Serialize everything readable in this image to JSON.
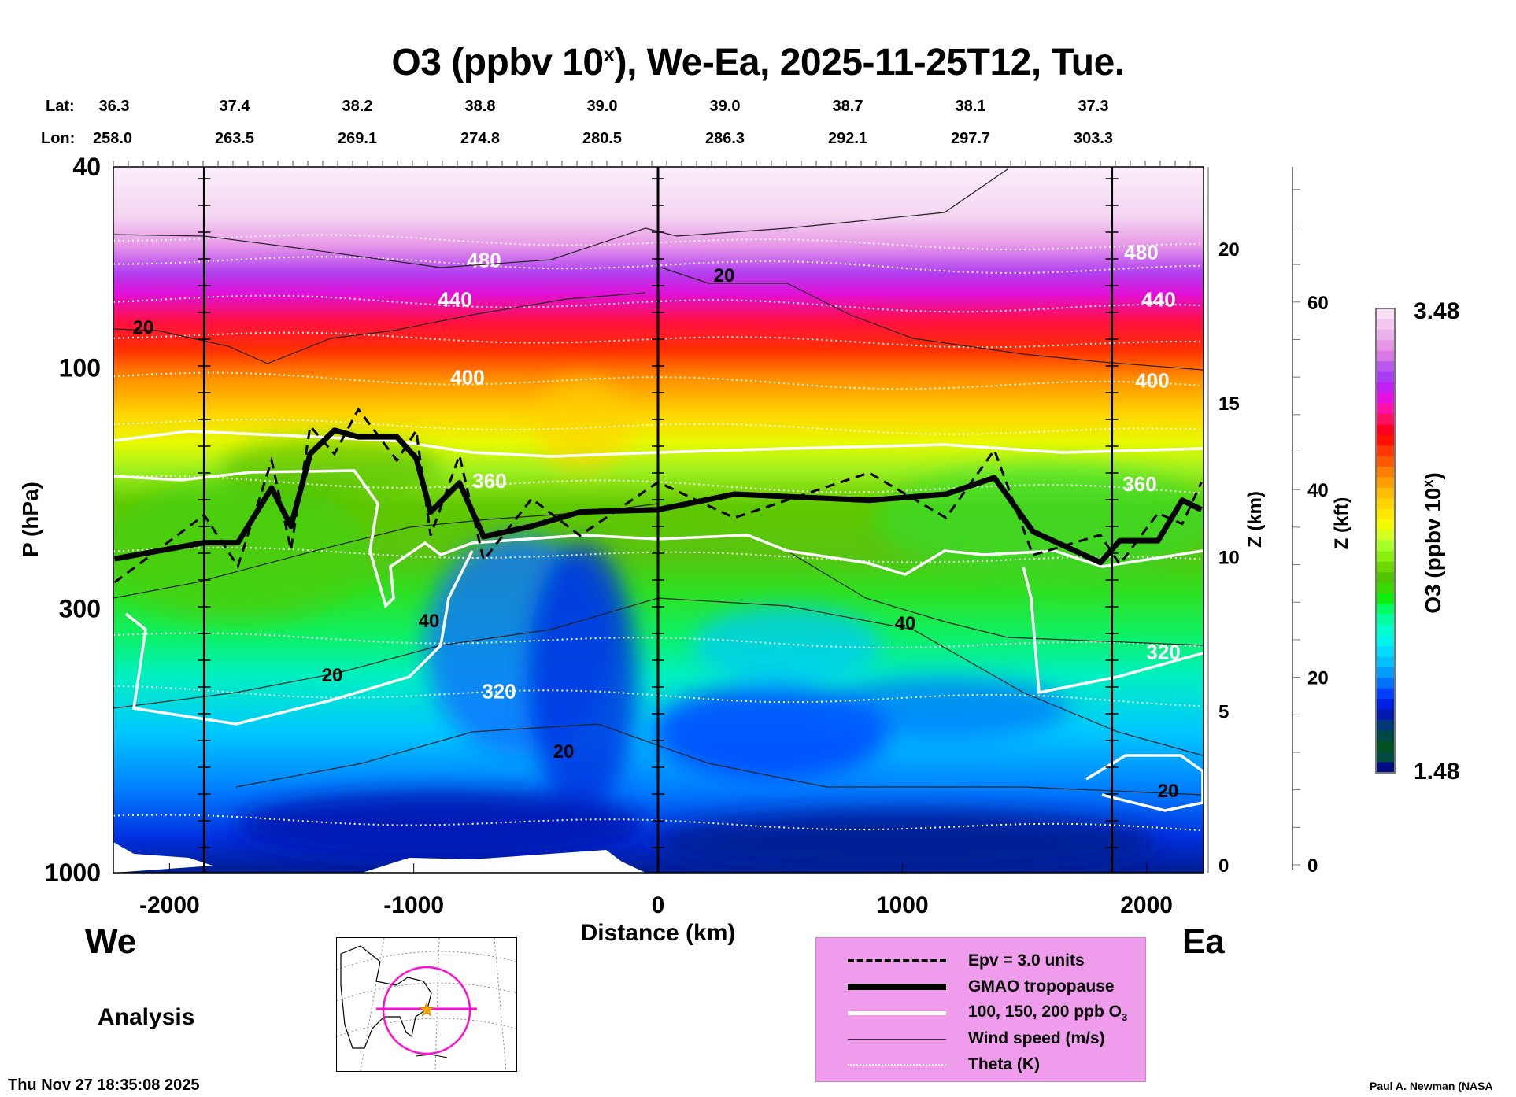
{
  "title": {
    "main": "O3 (ppbv 10",
    "sup": "x",
    "rest": "), We-Ea, 2025-11-25T12, Tue."
  },
  "lat_label": "Lat:",
  "lon_label": "Lon:",
  "lats": [
    "36.3",
    "37.4",
    "38.2",
    "38.8",
    "39.0",
    "39.0",
    "38.7",
    "38.1",
    "37.3"
  ],
  "lons": [
    "258.0",
    "263.5",
    "269.1",
    "274.8",
    "280.5",
    "286.3",
    "292.1",
    "297.7",
    "303.3"
  ],
  "west_label": "We",
  "east_label": "Ea",
  "analysis_label": "Analysis",
  "timestamp": "Thu Nov 27 18:35:08 2025",
  "credit": "Paul A. Newman (NASA",
  "legend": {
    "epv": "Epv = 3.0 units",
    "tropopause": "GMAO tropopause",
    "ozone": "100, 150, 200 ppb O",
    "ozone_sub": "3",
    "wind": "Wind speed (m/s)",
    "theta": "Theta (K)"
  },
  "chart_data": {
    "type": "heatmap",
    "title": "O3 (ppbv 10^x), We-Ea, 2025-11-25T12, Tue.",
    "xlabel": "Distance (km)",
    "ylabel": "P (hPa)",
    "y2label": "Z (km)",
    "y3label": "Z (kft)",
    "colorbar_label": "O3 (ppbv 10",
    "colorbar_label_sup": "x",
    "colorbar_label_end": ")",
    "xlim": [
      -2230,
      2230
    ],
    "ylim": [
      1000,
      40
    ],
    "yscale": "log",
    "xticks": [
      "-2000",
      "-1000",
      "0",
      "1000",
      "2000"
    ],
    "xtick_values": [
      -2000,
      -1000,
      0,
      1000,
      2000
    ],
    "yticks": [
      "40",
      "100",
      "300",
      "1000"
    ],
    "ytick_values": [
      40,
      100,
      300,
      1000
    ],
    "zkm_ticks": [
      "0",
      "5",
      "10",
      "15",
      "20"
    ],
    "zkm_values": [
      0,
      5,
      10,
      15,
      20
    ],
    "zkft_ticks": [
      "0",
      "20",
      "40",
      "60"
    ],
    "zkft_values": [
      0,
      20,
      40,
      60
    ],
    "section_lines_km": [
      -1858,
      0,
      1858
    ],
    "colorbar": {
      "min": "1.48",
      "max": "3.48",
      "colors": [
        "#f7e0f4",
        "#f2c8ee",
        "#eab0ea",
        "#e496e4",
        "#d878e4",
        "#bb58ec",
        "#a83cf0",
        "#c020f0",
        "#e410e0",
        "#ff10a8",
        "#ff1060",
        "#ff0020",
        "#ff1000",
        "#ff3800",
        "#ff5800",
        "#ff8000",
        "#ffa000",
        "#ffbc00",
        "#ffd400",
        "#ffe800",
        "#f4fa00",
        "#d4ff20",
        "#a8ff28",
        "#88f010",
        "#6cd800",
        "#50c400",
        "#38d800",
        "#10ee10",
        "#00ff60",
        "#00ffa0",
        "#00ffcc",
        "#00f4ee",
        "#00dcff",
        "#00c0ff",
        "#009cff",
        "#0070ff",
        "#0040ff",
        "#0020e0",
        "#0018b0",
        "#003878",
        "#004848",
        "#005020",
        "#004a40",
        "#000c80"
      ]
    },
    "tropopause": {
      "x": [
        -2225,
        -1858,
        -1720,
        -1582,
        -1503,
        -1424,
        -1325,
        -1227,
        -1069,
        -990,
        -931,
        -813,
        -714,
        -517,
        -320,
        0,
        312,
        864,
        1179,
        1377,
        1535,
        1811,
        1890,
        2047,
        2146,
        2225
      ],
      "p": [
        239,
        222,
        222,
        173,
        206,
        148,
        133,
        137,
        137,
        151,
        193,
        169,
        216,
        206,
        193,
        191,
        178,
        183,
        178,
        165,
        211,
        243,
        220,
        220,
        183,
        191
      ]
    },
    "theta_levels": [
      {
        "label": "480",
        "p": 61
      },
      {
        "label": "440",
        "p": 73
      },
      {
        "label": "400",
        "p": 104
      },
      {
        "label": "360",
        "p": 167
      },
      {
        "label": "320",
        "p": 436
      }
    ],
    "theta_unlabeled_p": [
      55,
      86,
      128,
      230,
      340,
      780
    ],
    "wind_labels": [
      "20",
      "20",
      "40",
      "40",
      "20",
      "20",
      "20"
    ],
    "legend_position": "bottom-center"
  }
}
